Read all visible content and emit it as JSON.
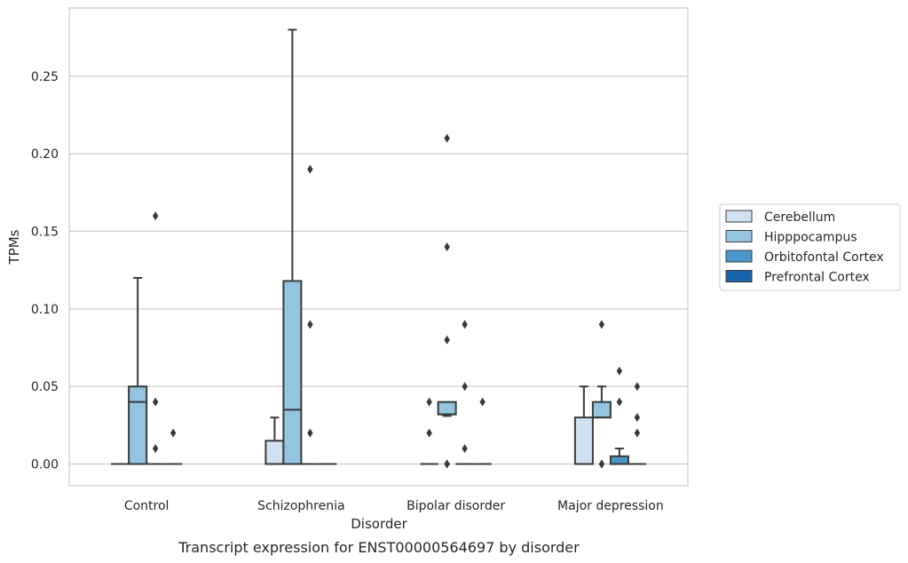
{
  "caption": "Transcript expression for ENST00000564697 by disorder",
  "chart_data": {
    "type": "box",
    "xlabel": "Disorder",
    "ylabel": "TPMs",
    "categories": [
      "Control",
      "Schizophrenia",
      "Bipolar disorder",
      "Major depression"
    ],
    "yticks": [
      "0.00",
      "0.05",
      "0.10",
      "0.15",
      "0.20",
      "0.25"
    ],
    "ytick_values": [
      0,
      0.05,
      0.1,
      0.15,
      0.2,
      0.25
    ],
    "ylim": [
      -0.014,
      0.294
    ],
    "grid": true,
    "legend_placement": "right",
    "colors": {
      "Cerebellum": "#d0e1f2",
      "Hipppocampus": "#94c4df",
      "Orbitofontal Cortex": "#4a98c9",
      "Prefrontal Cortex": "#1764ab",
      "edge": "#3a3a3a",
      "grid": "#cccccc"
    },
    "series": [
      {
        "name": "Cerebellum",
        "boxes": [
          {
            "q1": 0,
            "median": 0,
            "q3": 0,
            "whisker_low": 0,
            "whisker_high": 0,
            "fliers": []
          },
          {
            "q1": 0,
            "median": 0,
            "q3": 0.015,
            "whisker_low": 0,
            "whisker_high": 0.03,
            "fliers": []
          },
          {
            "q1": 0,
            "median": 0,
            "q3": 0,
            "whisker_low": 0,
            "whisker_high": 0,
            "fliers": [
              0.02,
              0.04
            ]
          },
          {
            "q1": 0,
            "median": 0,
            "q3": 0.03,
            "whisker_low": 0,
            "whisker_high": 0.05,
            "fliers": []
          }
        ]
      },
      {
        "name": "Hipppocampus",
        "boxes": [
          {
            "q1": 0,
            "median": 0.04,
            "q3": 0.05,
            "whisker_low": 0,
            "whisker_high": 0.12,
            "fliers": []
          },
          {
            "q1": 0,
            "median": 0.035,
            "q3": 0.118,
            "whisker_low": 0,
            "whisker_high": 0.28,
            "fliers": []
          },
          {
            "q1": 0.032,
            "median": 0.032,
            "q3": 0.04,
            "whisker_low": 0.031,
            "whisker_high": 0.04,
            "fliers": [
              0.21,
              0.14,
              0.08,
              0,
              0
            ]
          },
          {
            "q1": 0.03,
            "median": 0.03,
            "q3": 0.04,
            "whisker_low": 0.03,
            "whisker_high": 0.05,
            "fliers": [
              0.09,
              0,
              0
            ]
          }
        ]
      },
      {
        "name": "Orbitofontal Cortex",
        "boxes": [
          {
            "q1": 0,
            "median": 0,
            "q3": 0,
            "whisker_low": 0,
            "whisker_high": 0,
            "fliers": [
              0.16,
              0.04,
              0.01
            ]
          },
          {
            "q1": 0,
            "median": 0,
            "q3": 0,
            "whisker_low": 0,
            "whisker_high": 0,
            "fliers": [
              0.19,
              0.09,
              0.02
            ]
          },
          {
            "q1": 0,
            "median": 0,
            "q3": 0,
            "whisker_low": 0,
            "whisker_high": 0,
            "fliers": [
              0.09,
              0.05,
              0.01
            ]
          },
          {
            "q1": 0,
            "median": 0,
            "q3": 0.005,
            "whisker_low": 0,
            "whisker_high": 0.01,
            "fliers": [
              0.06,
              0.04
            ]
          }
        ]
      },
      {
        "name": "Prefrontal Cortex",
        "boxes": [
          {
            "q1": 0,
            "median": 0,
            "q3": 0,
            "whisker_low": 0,
            "whisker_high": 0,
            "fliers": [
              0.02
            ]
          },
          {
            "q1": 0,
            "median": 0,
            "q3": 0,
            "whisker_low": 0,
            "whisker_high": 0,
            "fliers": []
          },
          {
            "q1": 0,
            "median": 0,
            "q3": 0,
            "whisker_low": 0,
            "whisker_high": 0,
            "fliers": [
              0.04
            ]
          },
          {
            "q1": 0,
            "median": 0,
            "q3": 0,
            "whisker_low": 0,
            "whisker_high": 0,
            "fliers": [
              0.05,
              0.03,
              0.02
            ]
          }
        ]
      }
    ]
  }
}
